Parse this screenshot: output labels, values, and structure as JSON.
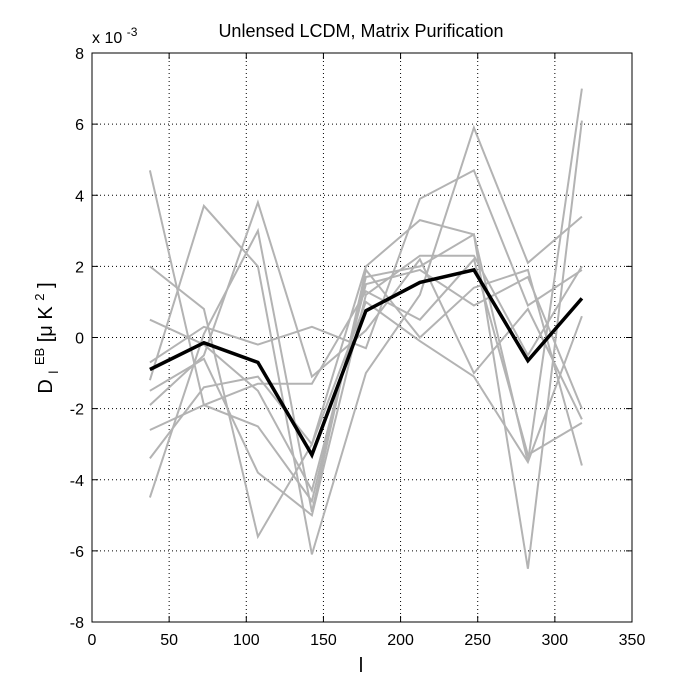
{
  "chart_data": {
    "type": "line",
    "title": "Unlensed LCDM, Matrix Purification",
    "xlabel": "l",
    "ylabel": {
      "main": "D",
      "sub": "l",
      "sup": "EB",
      "unit_prefix": "[μ K",
      "unit_sup": "2",
      "unit_suffix": "]"
    },
    "y_multiplier": {
      "prefix": "x 10",
      "exponent": "-3"
    },
    "xlim": [
      0,
      350
    ],
    "ylim": [
      -8,
      8
    ],
    "xticks": [
      0,
      50,
      100,
      150,
      200,
      250,
      300,
      350
    ],
    "yticks": [
      -8,
      -6,
      -4,
      -2,
      0,
      2,
      4,
      6,
      8
    ],
    "grid": true,
    "x": [
      37.5,
      72.5,
      107.5,
      142.5,
      177.5,
      212.5,
      247.5,
      282.5,
      317.5
    ],
    "mean_series": {
      "color": "#000000",
      "values": [
        -0.9,
        -0.15,
        -0.7,
        -3.3,
        0.75,
        1.55,
        1.9,
        -0.65,
        1.1
      ]
    },
    "realizations": {
      "color": "#b3b3b3",
      "series": [
        {
          "values": [
            4.7,
            -1.9,
            -2.5,
            -4.6,
            1.7,
            2.0,
            2.9,
            -3.5,
            7.0
          ]
        },
        {
          "values": [
            -0.7,
            0.3,
            -0.2,
            0.3,
            -0.3,
            3.9,
            4.7,
            0.9,
            1.9
          ]
        },
        {
          "values": [
            -4.5,
            0.1,
            3.0,
            -4.9,
            1.9,
            0.0,
            1.4,
            1.9,
            -3.6
          ]
        },
        {
          "values": [
            -1.2,
            3.7,
            2.0,
            -6.1,
            -1.0,
            1.2,
            5.9,
            2.1,
            3.4
          ]
        },
        {
          "values": [
            2.0,
            0.8,
            -5.6,
            -3.0,
            2.0,
            3.3,
            2.9,
            -6.5,
            6.1
          ]
        },
        {
          "values": [
            -1.9,
            -0.5,
            3.8,
            -1.1,
            0.2,
            2.2,
            -1.0,
            0.8,
            -2.3
          ]
        },
        {
          "values": [
            -2.6,
            -1.9,
            -1.3,
            -1.3,
            1.3,
            0.5,
            2.2,
            -3.3,
            -2.4
          ]
        },
        {
          "values": [
            0.5,
            -0.2,
            -1.5,
            -4.3,
            1.5,
            1.9,
            0.9,
            1.7,
            -2.0
          ]
        },
        {
          "values": [
            -3.4,
            -1.4,
            -1.1,
            -3.0,
            1.0,
            -0.1,
            -1.1,
            -3.5,
            0.6
          ]
        },
        {
          "values": [
            -1.5,
            -0.6,
            -3.8,
            -5.0,
            1.2,
            2.3,
            2.3,
            -0.5,
            2.0
          ]
        }
      ]
    }
  }
}
